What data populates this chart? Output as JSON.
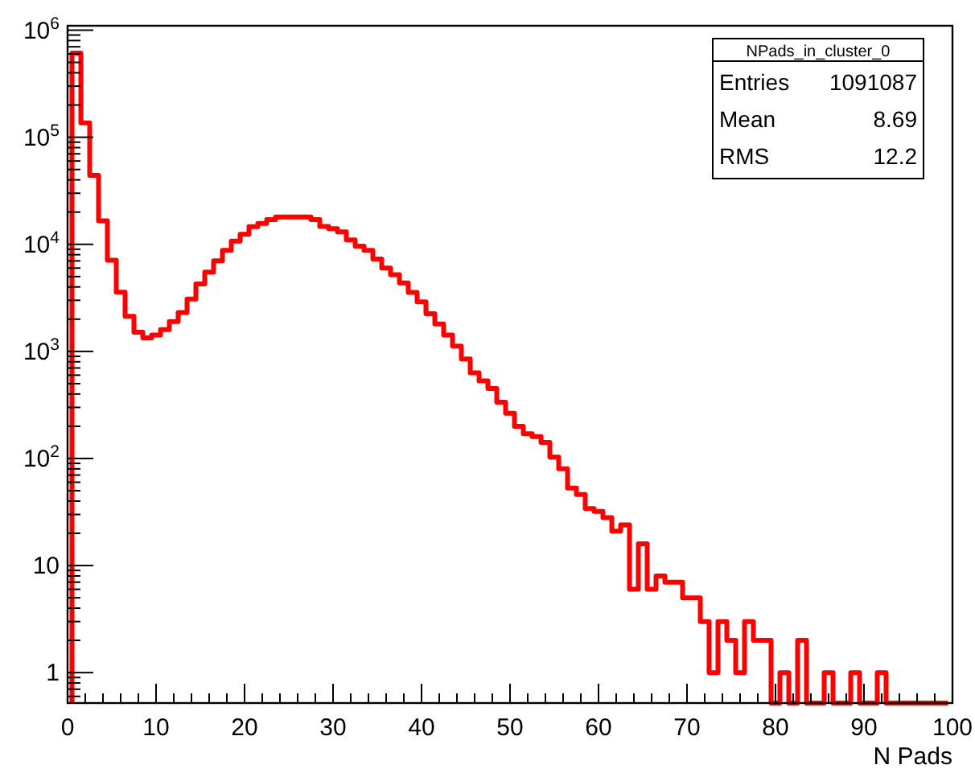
{
  "chart_data": {
    "type": "histogram",
    "xlabel": "N Pads",
    "color": "#ff0000",
    "log": "y",
    "grid": false,
    "bins": [
      0.5,
      1.5,
      2.5,
      3.5,
      4.5,
      5.5,
      6.5,
      7.5,
      8.5,
      9.5,
      10.5,
      11.5,
      12.5,
      13.5,
      14.5,
      15.5,
      16.5,
      17.5,
      18.5,
      19.5,
      20.5,
      21.5,
      22.5,
      23.5,
      24.5,
      25.5,
      26.5,
      27.5,
      28.5,
      29.5,
      30.5,
      31.5,
      32.5,
      33.5,
      34.5,
      35.5,
      36.5,
      37.5,
      38.5,
      39.5,
      40.5,
      41.5,
      42.5,
      43.5,
      44.5,
      45.5,
      46.5,
      47.5,
      48.5,
      49.5,
      50.5,
      51.5,
      52.5,
      53.5,
      54.5,
      55.5,
      56.5,
      57.5,
      58.5,
      59.5,
      60.5,
      61.5,
      62.5,
      63.5,
      64.5,
      65.5,
      66.5,
      67.5,
      68.5,
      69.5,
      70.5,
      71.5,
      72.5,
      73.5,
      74.5,
      75.5,
      76.5,
      77.5,
      78.5,
      79.5,
      80.5,
      81.5,
      82.5,
      83.5,
      84.5,
      85.5,
      86.5,
      87.5,
      88.5,
      89.5,
      90.5,
      91.5,
      92.5,
      93.5,
      94.5,
      95.5,
      96.5,
      97.5,
      98.5,
      99.5
    ],
    "values": [
      610000,
      136000,
      44000,
      16600,
      7100,
      3570,
      2130,
      1510,
      1340,
      1420,
      1600,
      1900,
      2310,
      3080,
      4270,
      5500,
      7000,
      8800,
      10700,
      12400,
      14600,
      15700,
      17000,
      18000,
      18000,
      18000,
      18000,
      17000,
      14700,
      14000,
      13100,
      11000,
      9600,
      8800,
      7300,
      6000,
      5200,
      4350,
      3550,
      2900,
      2250,
      1800,
      1420,
      1120,
      850,
      630,
      530,
      450,
      335,
      265,
      200,
      170,
      160,
      141,
      103,
      80,
      53,
      46,
      34,
      32,
      28,
      21,
      24,
      6,
      16,
      6,
      8,
      7,
      7,
      5,
      5,
      3,
      1,
      3,
      2,
      1,
      3,
      2,
      2,
      null,
      1,
      null,
      2,
      null,
      null,
      1,
      null,
      null,
      1,
      null,
      null,
      1,
      null,
      null,
      null,
      null,
      null,
      null,
      null
    ],
    "xlim": [
      0,
      100
    ],
    "xticks": [
      0,
      {
        "value": 2,
        "label": null
      },
      {
        "value": 4,
        "label": null
      },
      {
        "value": 6,
        "label": null
      },
      {
        "value": 8,
        "label": null
      },
      10,
      {
        "value": 12,
        "label": null
      },
      {
        "value": 14,
        "label": null
      },
      {
        "value": 16,
        "label": null
      },
      {
        "value": 18,
        "label": null
      },
      20,
      {
        "value": 22,
        "label": null
      },
      {
        "value": 24,
        "label": null
      },
      {
        "value": 26,
        "label": null
      },
      {
        "value": 28,
        "label": null
      },
      30,
      {
        "value": 32,
        "label": null
      },
      {
        "value": 34,
        "label": null
      },
      {
        "value": 36,
        "label": null
      },
      {
        "value": 38,
        "label": null
      },
      40,
      {
        "value": 42,
        "label": null
      },
      {
        "value": 44,
        "label": null
      },
      {
        "value": 46,
        "label": null
      },
      {
        "value": 48,
        "label": null
      },
      50,
      {
        "value": 52,
        "label": null
      },
      {
        "value": 54,
        "label": null
      },
      {
        "value": 56,
        "label": null
      },
      {
        "value": 58,
        "label": null
      },
      60,
      {
        "value": 62,
        "label": null
      },
      {
        "value": 64,
        "label": null
      },
      {
        "value": 66,
        "label": null
      },
      {
        "value": 68,
        "label": null
      },
      70,
      {
        "value": 72,
        "label": null
      },
      {
        "value": 74,
        "label": null
      },
      {
        "value": 76,
        "label": null
      },
      {
        "value": 78,
        "label": null
      },
      80,
      {
        "value": 82,
        "label": null
      },
      {
        "value": 84,
        "label": null
      },
      {
        "value": 86,
        "label": null
      },
      {
        "value": 88,
        "label": null
      },
      90,
      {
        "value": 92,
        "label": null
      },
      {
        "value": 94,
        "label": null
      },
      {
        "value": 96,
        "label": null
      },
      {
        "value": 98,
        "label": null
      },
      100
    ],
    "ylim": [
      0.52,
      1100000
    ],
    "yticks": [
      {
        "value": 0.6,
        "label": null
      },
      {
        "value": 0.7,
        "label": null
      },
      {
        "value": 0.8,
        "label": null
      },
      {
        "value": 0.9,
        "label": null
      },
      1,
      {
        "value": 2,
        "label": null
      },
      {
        "value": 3,
        "label": null
      },
      {
        "value": 4,
        "label": null
      },
      {
        "value": 5,
        "label": null
      },
      {
        "value": 6,
        "label": null
      },
      {
        "value": 7,
        "label": null
      },
      {
        "value": 8,
        "label": null
      },
      {
        "value": 9,
        "label": null
      },
      10,
      {
        "value": 20,
        "label": null
      },
      {
        "value": 30,
        "label": null
      },
      {
        "value": 40,
        "label": null
      },
      {
        "value": 50,
        "label": null
      },
      {
        "value": 60,
        "label": null
      },
      {
        "value": 70,
        "label": null
      },
      {
        "value": 80,
        "label": null
      },
      {
        "value": 90,
        "label": null
      },
      {
        "value": 100,
        "label": "10$^{2}$"
      },
      {
        "value": 200,
        "label": null
      },
      {
        "value": 300,
        "label": null
      },
      {
        "value": 400,
        "label": null
      },
      {
        "value": 500,
        "label": null
      },
      {
        "value": 600,
        "label": null
      },
      {
        "value": 700,
        "label": null
      },
      {
        "value": 800,
        "label": null
      },
      {
        "value": 900,
        "label": null
      },
      {
        "value": 1000,
        "label": "10$^{3}$"
      },
      {
        "value": 2000,
        "label": null
      },
      {
        "value": 3000,
        "label": null
      },
      {
        "value": 4000,
        "label": null
      },
      {
        "value": 5000,
        "label": null
      },
      {
        "value": 6000,
        "label": null
      },
      {
        "value": 7000,
        "label": null
      },
      {
        "value": 8000,
        "label": null
      },
      {
        "value": 9000,
        "label": null
      },
      {
        "value": 10000,
        "label": "10$^{4}$"
      },
      {
        "value": 20000,
        "label": null
      },
      {
        "value": 30000,
        "label": null
      },
      {
        "value": 40000,
        "label": null
      },
      {
        "value": 50000,
        "label": null
      },
      {
        "value": 60000,
        "label": null
      },
      {
        "value": 70000,
        "label": null
      },
      {
        "value": 80000,
        "label": null
      },
      {
        "value": 90000,
        "label": null
      },
      {
        "value": 100000,
        "label": "10$^{5}$"
      },
      {
        "value": 200000,
        "label": null
      },
      {
        "value": 300000,
        "label": null
      },
      {
        "value": 400000,
        "label": null
      },
      {
        "value": 500000,
        "label": null
      },
      {
        "value": 600000,
        "label": null
      },
      {
        "value": 700000,
        "label": null
      },
      {
        "value": 800000,
        "label": null
      },
      {
        "value": 900000,
        "label": null
      },
      {
        "value": 1000000,
        "label": "10$^{6}$"
      }
    ],
    "annotations": [
      "NPads_in_cluster_0",
      "Entries 1091087",
      "Mean 8.69",
      "RMS 12.2"
    ]
  }
}
